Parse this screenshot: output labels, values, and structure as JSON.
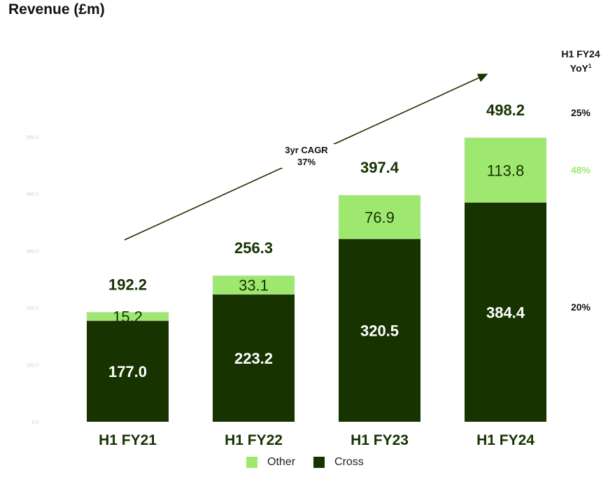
{
  "title": "Revenue (£m)",
  "colors": {
    "other": "#9fe870",
    "cross": "#163300",
    "axis_tick": "#cfcfcf"
  },
  "yoy": {
    "header_line1": "H1 FY24",
    "header_line2": "YoY",
    "header_sup": "1",
    "total": "25%",
    "other": "48%",
    "cross": "20%"
  },
  "cagr": {
    "line1": "3yr CAGR",
    "line2": "37%"
  },
  "chart_data": {
    "type": "bar",
    "stacked": true,
    "categories": [
      "H1 FY21",
      "H1 FY22",
      "H1 FY23",
      "H1 FY24"
    ],
    "series": [
      {
        "name": "Cross",
        "values": [
          177.0,
          223.2,
          320.5,
          384.4
        ]
      },
      {
        "name": "Other",
        "values": [
          15.2,
          33.1,
          76.9,
          113.8
        ]
      }
    ],
    "totals": [
      192.2,
      256.3,
      397.4,
      498.2
    ],
    "value_labels": {
      "Cross": [
        "177.0",
        "223.2",
        "320.5",
        "384.4"
      ],
      "Other": [
        "15.2",
        "33.1",
        "76.9",
        "113.8"
      ],
      "Total": [
        "192.2",
        "256.3",
        "397.4",
        "498.2"
      ]
    },
    "yticks": [
      "0.0",
      "100.0",
      "200.0",
      "300.0",
      "400.0",
      "500.0"
    ],
    "ylim": [
      0,
      500
    ],
    "legend": [
      "Other",
      "Cross"
    ],
    "legend_position": "bottom"
  }
}
